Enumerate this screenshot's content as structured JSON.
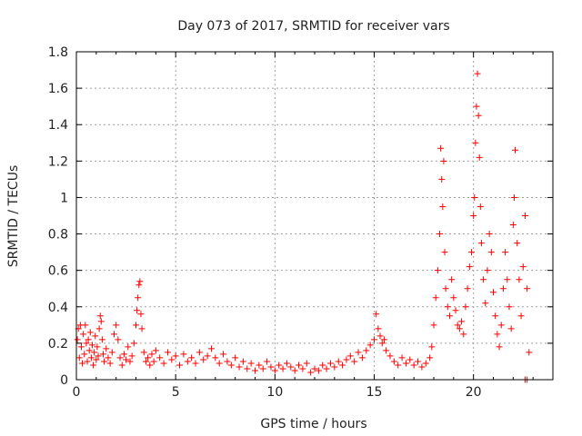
{
  "chart_data": {
    "type": "scatter",
    "title": "Day 073 of 2017, SRMTID for receiver vars",
    "xlabel": "GPS time / hours",
    "ylabel": "SRMTID / TECUs",
    "xlim": [
      0,
      24
    ],
    "ylim": [
      0,
      1.8
    ],
    "xticks": [
      "0",
      "5",
      "10",
      "15",
      "20"
    ],
    "xtick_values": [
      0,
      5,
      10,
      15,
      20
    ],
    "yticks": [
      "0",
      "0.2",
      "0.4",
      "0.6",
      "0.8",
      "1",
      "1.2",
      "1.4",
      "1.6",
      "1.8"
    ],
    "ytick_values": [
      0,
      0.2,
      0.4,
      0.6,
      0.8,
      1.0,
      1.2,
      1.4,
      1.6,
      1.8
    ],
    "grid": true,
    "marker": "plus",
    "color": "#ff0000",
    "series": [
      {
        "name": "SRMTID",
        "points": [
          [
            0.05,
            0.22
          ],
          [
            0.1,
            0.28
          ],
          [
            0.15,
            0.12
          ],
          [
            0.2,
            0.3
          ],
          [
            0.25,
            0.18
          ],
          [
            0.3,
            0.09
          ],
          [
            0.35,
            0.25
          ],
          [
            0.4,
            0.14
          ],
          [
            0.45,
            0.3
          ],
          [
            0.5,
            0.2
          ],
          [
            0.55,
            0.1
          ],
          [
            0.6,
            0.22
          ],
          [
            0.65,
            0.16
          ],
          [
            0.7,
            0.26
          ],
          [
            0.75,
            0.12
          ],
          [
            0.8,
            0.19
          ],
          [
            0.85,
            0.08
          ],
          [
            0.9,
            0.15
          ],
          [
            0.95,
            0.24
          ],
          [
            1.0,
            0.11
          ],
          [
            1.05,
            0.18
          ],
          [
            1.1,
            0.13
          ],
          [
            1.15,
            0.28
          ],
          [
            1.2,
            0.35
          ],
          [
            1.25,
            0.32
          ],
          [
            1.3,
            0.22
          ],
          [
            1.35,
            0.14
          ],
          [
            1.4,
            0.1
          ],
          [
            1.5,
            0.17
          ],
          [
            1.6,
            0.12
          ],
          [
            1.7,
            0.09
          ],
          [
            1.8,
            0.15
          ],
          [
            1.9,
            0.25
          ],
          [
            2.0,
            0.3
          ],
          [
            2.1,
            0.22
          ],
          [
            2.2,
            0.12
          ],
          [
            2.3,
            0.08
          ],
          [
            2.4,
            0.14
          ],
          [
            2.5,
            0.11
          ],
          [
            2.6,
            0.18
          ],
          [
            2.7,
            0.1
          ],
          [
            2.8,
            0.13
          ],
          [
            2.9,
            0.2
          ],
          [
            3.0,
            0.3
          ],
          [
            3.05,
            0.38
          ],
          [
            3.1,
            0.45
          ],
          [
            3.15,
            0.52
          ],
          [
            3.2,
            0.54
          ],
          [
            3.25,
            0.36
          ],
          [
            3.3,
            0.28
          ],
          [
            3.4,
            0.15
          ],
          [
            3.5,
            0.1
          ],
          [
            3.6,
            0.12
          ],
          [
            3.7,
            0.08
          ],
          [
            3.8,
            0.14
          ],
          [
            3.9,
            0.1
          ],
          [
            4.0,
            0.16
          ],
          [
            4.2,
            0.12
          ],
          [
            4.4,
            0.09
          ],
          [
            4.6,
            0.15
          ],
          [
            4.8,
            0.11
          ],
          [
            5.0,
            0.13
          ],
          [
            5.2,
            0.08
          ],
          [
            5.4,
            0.14
          ],
          [
            5.6,
            0.1
          ],
          [
            5.8,
            0.12
          ],
          [
            6.0,
            0.09
          ],
          [
            6.2,
            0.15
          ],
          [
            6.4,
            0.11
          ],
          [
            6.6,
            0.13
          ],
          [
            6.8,
            0.17
          ],
          [
            7.0,
            0.12
          ],
          [
            7.2,
            0.09
          ],
          [
            7.4,
            0.14
          ],
          [
            7.6,
            0.1
          ],
          [
            7.8,
            0.08
          ],
          [
            8.0,
            0.12
          ],
          [
            8.2,
            0.07
          ],
          [
            8.4,
            0.1
          ],
          [
            8.6,
            0.06
          ],
          [
            8.8,
            0.09
          ],
          [
            9.0,
            0.05
          ],
          [
            9.2,
            0.08
          ],
          [
            9.4,
            0.06
          ],
          [
            9.6,
            0.1
          ],
          [
            9.8,
            0.07
          ],
          [
            10.0,
            0.05
          ],
          [
            10.2,
            0.08
          ],
          [
            10.4,
            0.06
          ],
          [
            10.6,
            0.09
          ],
          [
            10.8,
            0.07
          ],
          [
            11.0,
            0.05
          ],
          [
            11.2,
            0.08
          ],
          [
            11.4,
            0.06
          ],
          [
            11.6,
            0.09
          ],
          [
            11.8,
            0.04
          ],
          [
            12.0,
            0.06
          ],
          [
            12.2,
            0.05
          ],
          [
            12.4,
            0.08
          ],
          [
            12.6,
            0.06
          ],
          [
            12.8,
            0.09
          ],
          [
            13.0,
            0.07
          ],
          [
            13.2,
            0.1
          ],
          [
            13.4,
            0.08
          ],
          [
            13.6,
            0.11
          ],
          [
            13.8,
            0.13
          ],
          [
            14.0,
            0.1
          ],
          [
            14.2,
            0.15
          ],
          [
            14.4,
            0.12
          ],
          [
            14.6,
            0.16
          ],
          [
            14.8,
            0.19
          ],
          [
            15.0,
            0.22
          ],
          [
            15.1,
            0.36
          ],
          [
            15.2,
            0.28
          ],
          [
            15.3,
            0.24
          ],
          [
            15.4,
            0.2
          ],
          [
            15.5,
            0.22
          ],
          [
            15.6,
            0.16
          ],
          [
            15.8,
            0.13
          ],
          [
            16.0,
            0.1
          ],
          [
            16.2,
            0.08
          ],
          [
            16.4,
            0.12
          ],
          [
            16.6,
            0.09
          ],
          [
            16.8,
            0.11
          ],
          [
            17.0,
            0.08
          ],
          [
            17.2,
            0.1
          ],
          [
            17.4,
            0.07
          ],
          [
            17.6,
            0.09
          ],
          [
            17.8,
            0.12
          ],
          [
            17.9,
            0.18
          ],
          [
            18.0,
            0.3
          ],
          [
            18.1,
            0.45
          ],
          [
            18.2,
            0.6
          ],
          [
            18.3,
            0.8
          ],
          [
            18.35,
            1.27
          ],
          [
            18.4,
            1.1
          ],
          [
            18.45,
            0.95
          ],
          [
            18.5,
            1.2
          ],
          [
            18.55,
            0.7
          ],
          [
            18.6,
            0.5
          ],
          [
            18.7,
            0.4
          ],
          [
            18.8,
            0.35
          ],
          [
            18.9,
            0.55
          ],
          [
            19.0,
            0.45
          ],
          [
            19.1,
            0.38
          ],
          [
            19.2,
            0.3
          ],
          [
            19.3,
            0.28
          ],
          [
            19.4,
            0.32
          ],
          [
            19.5,
            0.25
          ],
          [
            19.6,
            0.4
          ],
          [
            19.7,
            0.5
          ],
          [
            19.8,
            0.62
          ],
          [
            19.9,
            0.7
          ],
          [
            20.0,
            0.9
          ],
          [
            20.05,
            1.0
          ],
          [
            20.1,
            1.3
          ],
          [
            20.15,
            1.5
          ],
          [
            20.2,
            1.68
          ],
          [
            20.25,
            1.45
          ],
          [
            20.3,
            1.22
          ],
          [
            20.35,
            0.95
          ],
          [
            20.4,
            0.75
          ],
          [
            20.5,
            0.55
          ],
          [
            20.6,
            0.42
          ],
          [
            20.7,
            0.6
          ],
          [
            20.8,
            0.8
          ],
          [
            20.9,
            0.7
          ],
          [
            21.0,
            0.48
          ],
          [
            21.1,
            0.35
          ],
          [
            21.2,
            0.25
          ],
          [
            21.3,
            0.18
          ],
          [
            21.4,
            0.3
          ],
          [
            21.5,
            0.5
          ],
          [
            21.6,
            0.7
          ],
          [
            21.7,
            0.55
          ],
          [
            21.8,
            0.4
          ],
          [
            21.9,
            0.28
          ],
          [
            22.0,
            0.85
          ],
          [
            22.05,
            1.0
          ],
          [
            22.1,
            1.26
          ],
          [
            22.2,
            0.75
          ],
          [
            22.3,
            0.55
          ],
          [
            22.4,
            0.35
          ],
          [
            22.5,
            0.62
          ],
          [
            22.6,
            0.9
          ],
          [
            22.7,
            0.5
          ],
          [
            22.8,
            0.15
          ],
          [
            22.6,
            0.0
          ],
          [
            22.7,
            0.0
          ]
        ]
      }
    ]
  }
}
